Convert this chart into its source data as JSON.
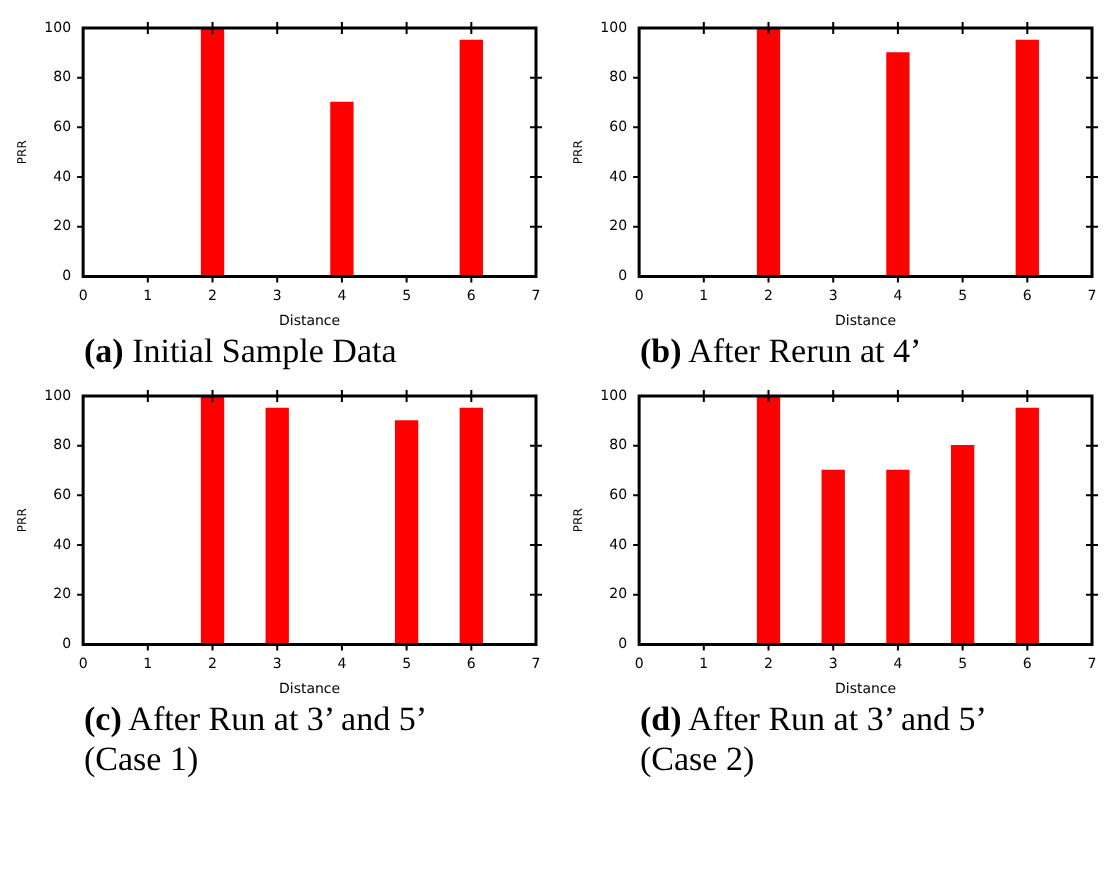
{
  "chart_data": [
    {
      "type": "bar",
      "title": "(a) Initial Sample Data",
      "xlabel": "Distance",
      "ylabel": "PRR",
      "x": [
        2,
        4,
        6
      ],
      "values": [
        100,
        70,
        95
      ],
      "color": "#ff0000",
      "xlim": [
        0,
        7
      ],
      "xticks": [
        0,
        1,
        2,
        3,
        4,
        5,
        6,
        7
      ],
      "ylim": [
        0,
        100
      ],
      "yticks": [
        0,
        20,
        40,
        60,
        80,
        100
      ],
      "grid": false,
      "legend": false
    },
    {
      "type": "bar",
      "title": "(b) After Rerun at 4’",
      "xlabel": "Distance",
      "ylabel": "PRR",
      "x": [
        2,
        4,
        6
      ],
      "values": [
        100,
        90,
        95
      ],
      "color": "#ff0000",
      "xlim": [
        0,
        7
      ],
      "xticks": [
        0,
        1,
        2,
        3,
        4,
        5,
        6,
        7
      ],
      "ylim": [
        0,
        100
      ],
      "yticks": [
        0,
        20,
        40,
        60,
        80,
        100
      ],
      "grid": false,
      "legend": false
    },
    {
      "type": "bar",
      "title": "(c) After Run at 3’ and 5’ (Case 1)",
      "xlabel": "Distance",
      "ylabel": "PRR",
      "x": [
        2,
        3,
        5,
        6
      ],
      "values": [
        100,
        95,
        90,
        95
      ],
      "color": "#ff0000",
      "xlim": [
        0,
        7
      ],
      "xticks": [
        0,
        1,
        2,
        3,
        4,
        5,
        6,
        7
      ],
      "ylim": [
        0,
        100
      ],
      "yticks": [
        0,
        20,
        40,
        60,
        80,
        100
      ],
      "grid": false,
      "legend": false
    },
    {
      "type": "bar",
      "title": "(d) After Run at 3’ and 5’ (Case 2)",
      "xlabel": "Distance",
      "ylabel": "PRR",
      "x": [
        2,
        3,
        4,
        5,
        6
      ],
      "values": [
        100,
        70,
        70,
        80,
        95
      ],
      "color": "#ff0000",
      "xlim": [
        0,
        7
      ],
      "xticks": [
        0,
        1,
        2,
        3,
        4,
        5,
        6,
        7
      ],
      "ylim": [
        0,
        100
      ],
      "yticks": [
        0,
        20,
        40,
        60,
        80,
        100
      ],
      "grid": false,
      "legend": false
    }
  ]
}
